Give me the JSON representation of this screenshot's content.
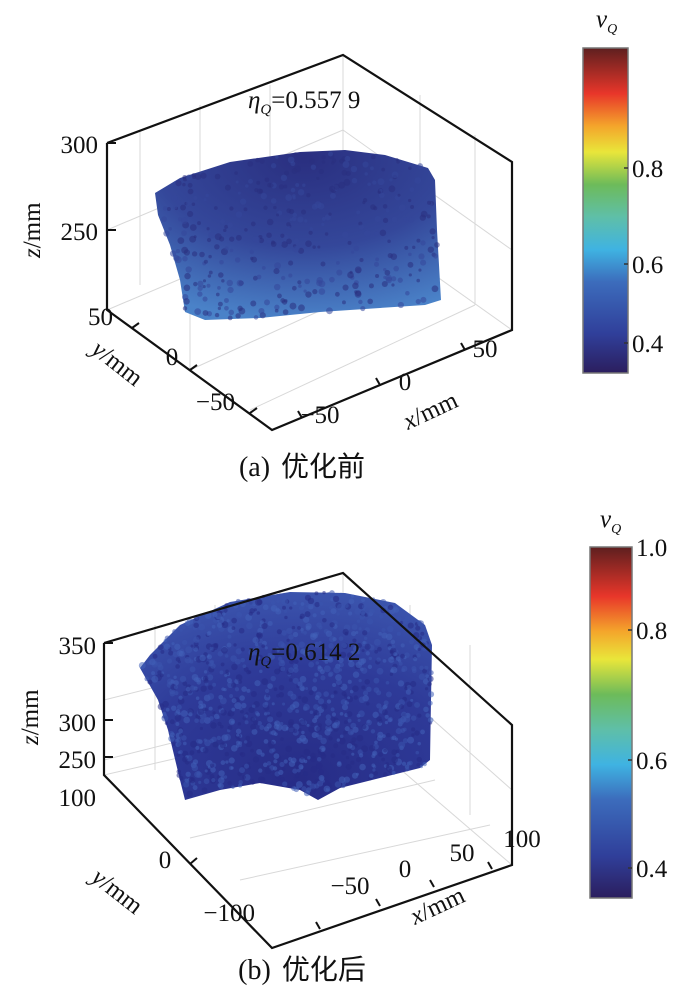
{
  "chart_data": [
    {
      "type": "scatter",
      "panel": "a",
      "caption_label": "(a)",
      "caption_text": "优化前",
      "annotation": {
        "symbol": "η",
        "sub": "Q",
        "value": "=0.557 9"
      },
      "xlabel": {
        "var": "x",
        "unit": "/mm"
      },
      "ylabel": {
        "var": "y",
        "unit": "/mm"
      },
      "zlabel": {
        "var": "z",
        "unit": "/mm"
      },
      "xticks": [
        "−50",
        "0",
        "50"
      ],
      "yticks": [
        "50",
        "0",
        "−50"
      ],
      "zticks": [
        "300",
        "250"
      ],
      "colorbar": {
        "title_var": "v",
        "title_sub": "Q",
        "ticks": [
          "0.8",
          "0.6",
          "0.4"
        ],
        "range": [
          0.3,
          0.95
        ],
        "colormap": "jet"
      },
      "surface_color_top": "#2a2f80",
      "surface_color_mid": "#34479a",
      "surface_color_edge": "#4a82c8",
      "grid": true
    },
    {
      "type": "scatter",
      "panel": "b",
      "caption_label": "(b)",
      "caption_text": "优化后",
      "annotation": {
        "symbol": "η",
        "sub": "Q",
        "value": "=0.614 2"
      },
      "xlabel": {
        "var": "x",
        "unit": "/mm"
      },
      "ylabel": {
        "var": "y",
        "unit": "/mm"
      },
      "zlabel": {
        "var": "z",
        "unit": "/mm"
      },
      "xticks": [
        "−50",
        "0",
        "50",
        "100"
      ],
      "yticks": [
        "100",
        "0",
        "−100"
      ],
      "zticks": [
        "350",
        "300",
        "250"
      ],
      "colorbar": {
        "title_var": "v",
        "title_sub": "Q",
        "ticks": [
          "1.0",
          "0.8",
          "0.6",
          "0.4"
        ],
        "range": [
          0.33,
          1.0
        ],
        "colormap": "jet"
      },
      "surface_color_top": "#272c86",
      "surface_color_mid": "#2e3a98",
      "surface_color_edge": "#3b54ad",
      "grid": true
    }
  ]
}
